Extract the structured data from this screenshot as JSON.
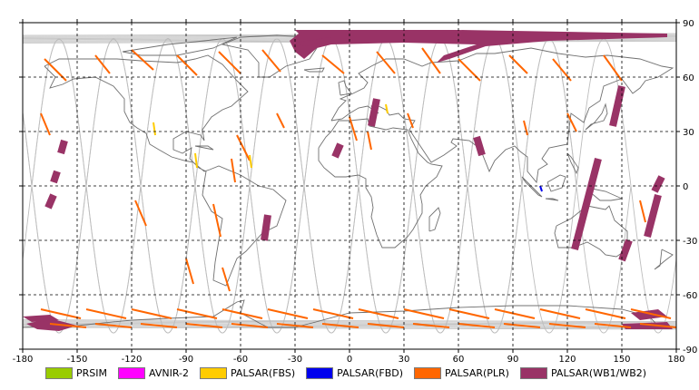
{
  "map": {
    "lon_ticks": [
      "-180",
      "-150",
      "-120",
      "-90",
      "-60",
      "-30",
      "0",
      "30",
      "60",
      "90",
      "120",
      "150",
      "180"
    ],
    "lat_ticks": [
      "90",
      "60",
      "30",
      "0",
      "-30",
      "-60",
      "-90"
    ],
    "lon_range": [
      -180,
      180
    ],
    "lat_range": [
      -90,
      90
    ],
    "grid": "dashed",
    "orbit_track_color": "#bdbdbd",
    "coastline_color": "#707070"
  },
  "legend": [
    {
      "label": "PRSIM",
      "color": "#99cc00"
    },
    {
      "label": "AVNIR-2",
      "color": "#ff00ff"
    },
    {
      "label": "PALSAR(FBS)",
      "color": "#ffcc00"
    },
    {
      "label": "PALSAR(FBD)",
      "color": "#0000ee"
    },
    {
      "label": "PALSAR(PLR)",
      "color": "#ff6600"
    },
    {
      "label": "PALSAR(WB1/WB2)",
      "color": "#993366"
    }
  ]
}
